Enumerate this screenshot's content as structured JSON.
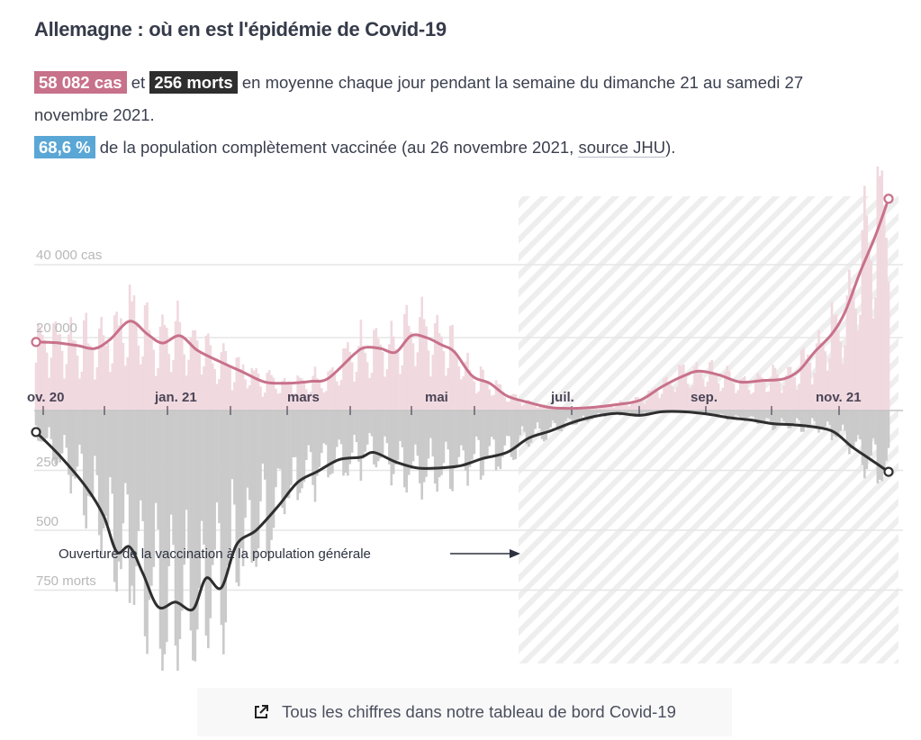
{
  "header": {
    "title": "Allemagne : où en est l'épidémie de Covid-19"
  },
  "summary": {
    "cases_badge": "58 082 cas",
    "connector": "et",
    "deaths_badge": "256 morts",
    "line1_rest": "en moyenne chaque jour pendant la semaine du dimanche 21 au samedi 27 novembre 2021.",
    "vacc_badge": "68,6 %",
    "vacc_text": "de la population complètement vaccinée (au 26 novembre 2021, ",
    "source_link": "source JHU",
    "vacc_end": ")."
  },
  "colors": {
    "cases": "#c8718a",
    "cases_bar": "#f0d9df",
    "deaths": "#2e2e2e",
    "deaths_bar": "#cacaca",
    "vaccination": "#5aa7d6"
  },
  "footer": {
    "link_label": "Tous les chiffres dans notre tableau de bord Covid-19",
    "icon": "external-link-icon"
  },
  "chart_data": {
    "type": "bar+line",
    "title": "",
    "x_labels": [
      "ov. 20",
      "jan. 21",
      "mars",
      "mai",
      "juil.",
      "sep.",
      "nov. 21"
    ],
    "cases_axis": {
      "labels": [
        "20 000",
        "40 000 cas"
      ],
      "ticks": [
        20000,
        40000
      ],
      "ylim": [
        0,
        60000
      ]
    },
    "deaths_axis": {
      "labels": [
        "250",
        "500",
        "750 morts"
      ],
      "ticks": [
        250,
        500,
        750
      ],
      "ylim": [
        0,
        1050
      ]
    },
    "annotation": {
      "text": "Ouverture de la vaccination à la population générale",
      "arrow": "right",
      "shaded_period_start": "juin 2021"
    },
    "series": [
      {
        "name": "cas (moyenne 7 jours)",
        "kind": "line",
        "points": [
          [
            "2020-11-01",
            18800
          ],
          [
            "2020-11-10",
            18600
          ],
          [
            "2020-11-20",
            17800
          ],
          [
            "2020-11-28",
            17000
          ],
          [
            "2020-12-05",
            19500
          ],
          [
            "2020-12-14",
            24500
          ],
          [
            "2020-12-22",
            21000
          ],
          [
            "2020-12-29",
            18500
          ],
          [
            "2021-01-06",
            20500
          ],
          [
            "2021-01-14",
            16500
          ],
          [
            "2021-01-24",
            13500
          ],
          [
            "2021-02-04",
            10500
          ],
          [
            "2021-02-14",
            7800
          ],
          [
            "2021-02-25",
            7500
          ],
          [
            "2021-03-07",
            8000
          ],
          [
            "2021-03-15",
            8800
          ],
          [
            "2021-03-27",
            15500
          ],
          [
            "2021-04-01",
            17300
          ],
          [
            "2021-04-08",
            17000
          ],
          [
            "2021-04-15",
            16000
          ],
          [
            "2021-04-22",
            20500
          ],
          [
            "2021-04-29",
            20000
          ],
          [
            "2021-05-06",
            18000
          ],
          [
            "2021-05-12",
            16000
          ],
          [
            "2021-05-20",
            9500
          ],
          [
            "2021-05-28",
            7500
          ],
          [
            "2021-06-05",
            4000
          ],
          [
            "2021-06-15",
            2200
          ],
          [
            "2021-06-25",
            800
          ],
          [
            "2021-07-05",
            600
          ],
          [
            "2021-07-15",
            900
          ],
          [
            "2021-07-25",
            1600
          ],
          [
            "2021-08-05",
            2800
          ],
          [
            "2021-08-15",
            6500
          ],
          [
            "2021-08-25",
            9500
          ],
          [
            "2021-09-01",
            10800
          ],
          [
            "2021-09-10",
            9800
          ],
          [
            "2021-09-20",
            7800
          ],
          [
            "2021-09-30",
            8200
          ],
          [
            "2021-10-10",
            8700
          ],
          [
            "2021-10-17",
            11000
          ],
          [
            "2021-10-24",
            16000
          ],
          [
            "2021-11-01",
            21000
          ],
          [
            "2021-11-07",
            27000
          ],
          [
            "2021-11-14",
            38000
          ],
          [
            "2021-11-21",
            48000
          ],
          [
            "2021-11-27",
            58082
          ]
        ]
      },
      {
        "name": "morts (moyenne 7 jours)",
        "kind": "line",
        "points": [
          [
            "2020-11-01",
            90
          ],
          [
            "2020-11-12",
            190
          ],
          [
            "2020-11-24",
            320
          ],
          [
            "2020-12-02",
            440
          ],
          [
            "2020-12-08",
            590
          ],
          [
            "2020-12-14",
            570
          ],
          [
            "2020-12-20",
            680
          ],
          [
            "2020-12-27",
            820
          ],
          [
            "2021-01-04",
            800
          ],
          [
            "2021-01-12",
            830
          ],
          [
            "2021-01-18",
            700
          ],
          [
            "2021-01-25",
            740
          ],
          [
            "2021-02-01",
            560
          ],
          [
            "2021-02-10",
            500
          ],
          [
            "2021-02-20",
            400
          ],
          [
            "2021-03-01",
            300
          ],
          [
            "2021-03-10",
            255
          ],
          [
            "2021-03-20",
            205
          ],
          [
            "2021-03-30",
            195
          ],
          [
            "2021-04-05",
            175
          ],
          [
            "2021-04-15",
            215
          ],
          [
            "2021-04-25",
            240
          ],
          [
            "2021-05-05",
            240
          ],
          [
            "2021-05-15",
            230
          ],
          [
            "2021-05-25",
            200
          ],
          [
            "2021-06-05",
            175
          ],
          [
            "2021-06-15",
            115
          ],
          [
            "2021-06-25",
            85
          ],
          [
            "2021-07-05",
            50
          ],
          [
            "2021-07-15",
            25
          ],
          [
            "2021-07-25",
            12
          ],
          [
            "2021-08-05",
            20
          ],
          [
            "2021-08-15",
            5
          ],
          [
            "2021-08-25",
            5
          ],
          [
            "2021-09-05",
            15
          ],
          [
            "2021-09-15",
            30
          ],
          [
            "2021-09-25",
            40
          ],
          [
            "2021-10-05",
            55
          ],
          [
            "2021-10-15",
            60
          ],
          [
            "2021-10-25",
            70
          ],
          [
            "2021-11-02",
            90
          ],
          [
            "2021-11-10",
            150
          ],
          [
            "2021-11-18",
            200
          ],
          [
            "2021-11-27",
            256
          ]
        ]
      }
    ],
    "grid": true,
    "legend": "none"
  }
}
